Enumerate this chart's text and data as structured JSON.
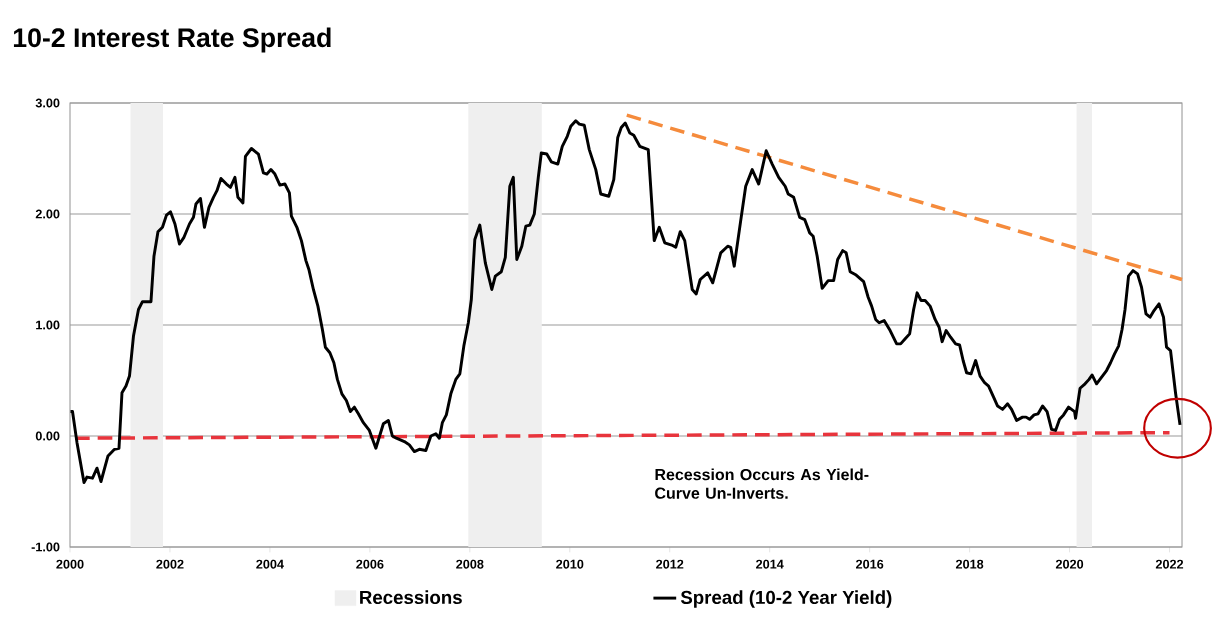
{
  "chart_data": {
    "type": "line",
    "title": "10-2 Interest Rate Spread",
    "xlim": [
      2000,
      2022.25
    ],
    "xticks": [
      2000,
      2002,
      2004,
      2006,
      2008,
      2010,
      2012,
      2014,
      2016,
      2018,
      2020,
      2022
    ],
    "ylim": [
      -1,
      3
    ],
    "yticks": [
      {
        "value": -1,
        "label": "-1.00"
      },
      {
        "value": 0,
        "label": "0.00"
      },
      {
        "value": 1,
        "label": "1.00"
      },
      {
        "value": 2,
        "label": "2.00"
      },
      {
        "value": 3,
        "label": "3.00"
      }
    ],
    "grid": "y",
    "legend": "bottom",
    "bands": [
      {
        "axis": "x",
        "from": 2001.21,
        "to": 2001.86,
        "label": "Recessions",
        "color": "#efefef"
      },
      {
        "axis": "x",
        "from": 2007.97,
        "to": 2009.44,
        "color": "#efefef"
      },
      {
        "axis": "x",
        "from": 2020.14,
        "to": 2020.45,
        "color": "#efefef"
      }
    ],
    "annotations": [
      "Recession Occurs As Yield-Curve Un-Inverts."
    ],
    "series": [
      {
        "name": "Spread (10-2 Year Yield)",
        "color": "#000000",
        "line_style": "solid",
        "x": [
          2000.01,
          2000.05,
          2000.14,
          2000.28,
          2000.34,
          2000.45,
          2000.54,
          2000.62,
          2000.76,
          2000.89,
          2000.98,
          2001.04,
          2001.12,
          2001.19,
          2001.27,
          2001.37,
          2001.45,
          2001.62,
          2001.68,
          2001.76,
          2001.85,
          2001.93,
          2002.01,
          2002.1,
          2002.19,
          2002.28,
          2002.39,
          2002.47,
          2002.52,
          2002.61,
          2002.69,
          2002.78,
          2002.87,
          2002.94,
          2003.02,
          2003.13,
          2003.21,
          2003.3,
          2003.36,
          2003.46,
          2003.51,
          2003.63,
          2003.77,
          2003.87,
          2003.94,
          2004.02,
          2004.1,
          2004.2,
          2004.3,
          2004.39,
          2004.43,
          2004.54,
          2004.63,
          2004.72,
          2004.78,
          2004.87,
          2004.96,
          2005.05,
          2005.11,
          2005.2,
          2005.28,
          2005.35,
          2005.44,
          2005.53,
          2005.61,
          2005.69,
          2005.77,
          2005.87,
          2005.99,
          2006.12,
          2006.27,
          2006.37,
          2006.45,
          2006.53,
          2006.69,
          2006.79,
          2006.89,
          2006.99,
          2007.12,
          2007.22,
          2007.32,
          2007.39,
          2007.45,
          2007.53,
          2007.62,
          2007.72,
          2007.8,
          2007.88,
          2007.97,
          2008.03,
          2008.1,
          2008.2,
          2008.31,
          2008.44,
          2008.51,
          2008.63,
          2008.71,
          2008.8,
          2008.87,
          2008.94,
          2009.04,
          2009.12,
          2009.2,
          2009.29,
          2009.37,
          2009.43,
          2009.54,
          2009.63,
          2009.76,
          2009.85,
          2009.95,
          2010.02,
          2010.12,
          2010.19,
          2010.29,
          2010.39,
          2010.52,
          2010.62,
          2010.78,
          2010.88,
          2010.96,
          2011.03,
          2011.11,
          2011.2,
          2011.28,
          2011.4,
          2011.57,
          2011.69,
          2011.79,
          2011.9,
          2012.04,
          2012.12,
          2012.21,
          2012.3,
          2012.45,
          2012.53,
          2012.61,
          2012.76,
          2012.86,
          2013.02,
          2013.16,
          2013.22,
          2013.29,
          2013.42,
          2013.52,
          2013.65,
          2013.78,
          2013.93,
          2014.05,
          2014.18,
          2014.31,
          2014.37,
          2014.48,
          2014.6,
          2014.7,
          2014.8,
          2014.87,
          2014.95,
          2015.05,
          2015.17,
          2015.28,
          2015.36,
          2015.46,
          2015.53,
          2015.61,
          2015.73,
          2015.88,
          2015.97,
          2016.04,
          2016.12,
          2016.19,
          2016.29,
          2016.41,
          2016.54,
          2016.62,
          2016.72,
          2016.8,
          2016.88,
          2016.95,
          2017.03,
          2017.11,
          2017.21,
          2017.31,
          2017.39,
          2017.45,
          2017.53,
          2017.62,
          2017.72,
          2017.8,
          2017.87,
          2017.94,
          2018.03,
          2018.12,
          2018.21,
          2018.3,
          2018.38,
          2018.48,
          2018.56,
          2018.66,
          2018.76,
          2018.84,
          2018.94,
          2019.06,
          2019.13,
          2019.2,
          2019.29,
          2019.37,
          2019.46,
          2019.55,
          2019.64,
          2019.72,
          2019.8,
          2019.88,
          2019.98,
          2020.1,
          2020.12,
          2020.21,
          2020.31,
          2020.39,
          2020.45,
          2020.54,
          2020.64,
          2020.74,
          2020.82,
          2020.9,
          2020.98,
          2021.05,
          2021.11,
          2021.18,
          2021.27,
          2021.36,
          2021.44,
          2021.53,
          2021.61,
          2021.69,
          2021.79,
          2021.88,
          2021.94,
          2022.02,
          2022.12,
          2022.21
        ],
        "values": [
          0.22,
          0.22,
          -0.06,
          -0.42,
          -0.37,
          -0.38,
          -0.29,
          -0.41,
          -0.18,
          -0.12,
          -0.11,
          0.39,
          0.45,
          0.54,
          0.9,
          1.14,
          1.21,
          1.21,
          1.62,
          1.84,
          1.88,
          1.99,
          2.02,
          1.91,
          1.73,
          1.79,
          1.91,
          1.97,
          2.09,
          2.14,
          1.88,
          2.06,
          2.15,
          2.21,
          2.32,
          2.27,
          2.24,
          2.33,
          2.15,
          2.1,
          2.52,
          2.59,
          2.54,
          2.37,
          2.36,
          2.4,
          2.36,
          2.26,
          2.27,
          2.19,
          1.98,
          1.88,
          1.76,
          1.58,
          1.5,
          1.32,
          1.17,
          0.96,
          0.8,
          0.75,
          0.66,
          0.51,
          0.38,
          0.32,
          0.22,
          0.26,
          0.2,
          0.12,
          0.05,
          -0.11,
          0.11,
          0.14,
          0.0,
          -0.02,
          -0.05,
          -0.08,
          -0.14,
          -0.12,
          -0.13,
          0.0,
          0.02,
          -0.02,
          0.12,
          0.19,
          0.38,
          0.51,
          0.56,
          0.81,
          1.02,
          1.23,
          1.77,
          1.9,
          1.56,
          1.32,
          1.44,
          1.48,
          1.61,
          2.25,
          2.33,
          1.59,
          1.71,
          1.89,
          1.9,
          2.0,
          2.33,
          2.55,
          2.54,
          2.47,
          2.45,
          2.61,
          2.7,
          2.79,
          2.84,
          2.81,
          2.8,
          2.58,
          2.4,
          2.18,
          2.16,
          2.31,
          2.69,
          2.78,
          2.82,
          2.73,
          2.71,
          2.61,
          2.58,
          1.76,
          1.88,
          1.74,
          1.72,
          1.7,
          1.84,
          1.76,
          1.32,
          1.28,
          1.41,
          1.47,
          1.38,
          1.65,
          1.71,
          1.7,
          1.53,
          1.94,
          2.25,
          2.4,
          2.27,
          2.57,
          2.45,
          2.33,
          2.25,
          2.18,
          2.15,
          1.97,
          1.95,
          1.83,
          1.8,
          1.62,
          1.33,
          1.4,
          1.4,
          1.59,
          1.67,
          1.65,
          1.48,
          1.45,
          1.39,
          1.25,
          1.17,
          1.05,
          1.02,
          1.04,
          0.95,
          0.83,
          0.83,
          0.88,
          0.92,
          1.14,
          1.29,
          1.22,
          1.22,
          1.17,
          1.05,
          0.98,
          0.85,
          0.95,
          0.89,
          0.83,
          0.82,
          0.68,
          0.57,
          0.56,
          0.68,
          0.54,
          0.48,
          0.45,
          0.35,
          0.27,
          0.24,
          0.29,
          0.24,
          0.14,
          0.17,
          0.17,
          0.15,
          0.19,
          0.2,
          0.27,
          0.22,
          0.06,
          0.05,
          0.15,
          0.19,
          0.26,
          0.22,
          0.16,
          0.43,
          0.47,
          0.51,
          0.55,
          0.47,
          0.53,
          0.59,
          0.66,
          0.74,
          0.81,
          0.96,
          1.14,
          1.44,
          1.49,
          1.46,
          1.34,
          1.1,
          1.07,
          1.13,
          1.19,
          1.07,
          0.8,
          0.77,
          0.39,
          0.1
        ]
      },
      {
        "type": "line",
        "color": "#f58b3c",
        "line_style": "dashed",
        "x": [
          2011.14,
          2022.25
        ],
        "values": [
          2.89,
          1.41
        ]
      },
      {
        "type": "line",
        "color": "#e8343c",
        "line_style": "dashed",
        "x": [
          2000.1,
          2022.0
        ],
        "values": [
          -0.02,
          0.03
        ]
      }
    ]
  }
}
